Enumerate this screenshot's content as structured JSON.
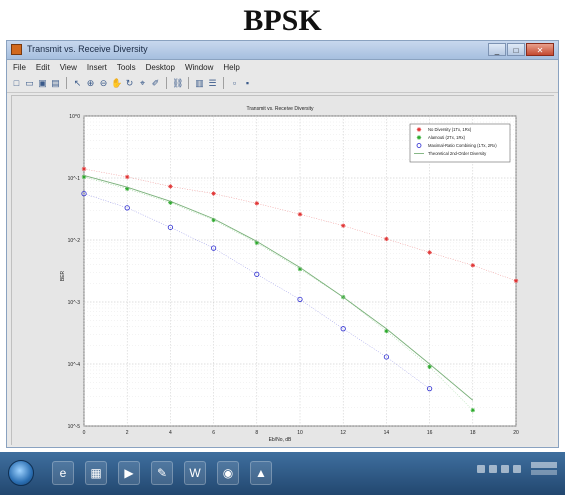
{
  "heading": "BPSK",
  "window": {
    "title": "Transmit vs. Receive Diversity",
    "controls": {
      "minimize": "_",
      "maximize": "□",
      "close": "✕"
    }
  },
  "menubar": [
    "File",
    "Edit",
    "View",
    "Insert",
    "Tools",
    "Desktop",
    "Window",
    "Help"
  ],
  "toolbar": {
    "icons": [
      "new-figure-icon",
      "open-file-icon",
      "save-icon",
      "print-icon",
      "select-arrow-icon",
      "zoom-in-icon",
      "zoom-out-icon",
      "pan-icon",
      "rotate-icon",
      "data-cursor-icon",
      "brush-icon",
      "link-icon",
      "colorbar-icon",
      "legend-icon",
      "hide-plot-tools-icon",
      "show-plot-tools-icon"
    ]
  },
  "chart_data": {
    "type": "line",
    "title": "Transmit vs. Receive Diversity",
    "xlabel": "Eb/No, dB",
    "ylabel": "BER",
    "x": [
      0,
      2,
      4,
      6,
      8,
      10,
      12,
      14,
      16,
      18,
      20
    ],
    "xlim": [
      0,
      20
    ],
    "ylim": [
      1e-05,
      1
    ],
    "yscale": "log",
    "xticks": [
      "0",
      "2",
      "4",
      "6",
      "8",
      "10",
      "12",
      "14",
      "16",
      "18",
      "20"
    ],
    "yticks": [
      "10^0",
      "10^-1",
      "10^-2",
      "10^-3",
      "10^-4",
      "10^-5"
    ],
    "grid": true,
    "legend_position": "top-right",
    "series": [
      {
        "name": "No Diversity (1Tx, 1Rx)",
        "color": "#e03030",
        "marker": "star",
        "line": "none",
        "values": [
          0.14,
          0.104,
          0.073,
          0.056,
          0.039,
          0.026,
          0.017,
          0.0104,
          0.0063,
          0.0039,
          0.0022
        ]
      },
      {
        "name": "Alamouti (2Tx, 1Rx)",
        "color": "#28a828",
        "marker": "star",
        "line": "none",
        "values": [
          0.104,
          0.067,
          0.04,
          0.021,
          0.009,
          0.0034,
          0.0012,
          0.00034,
          9e-05,
          1.8e-05,
          4e-06
        ]
      },
      {
        "name": "Maximal-Ratio Combining (1Tx, 2Rx)",
        "color": "#2a2ad0",
        "marker": "circle",
        "line": "none",
        "values": [
          0.056,
          0.033,
          0.016,
          0.0074,
          0.0028,
          0.0011,
          0.00037,
          0.00013,
          4e-05,
          9e-06,
          2e-06
        ]
      },
      {
        "name": "Theoretical 2nd-Order Diversity",
        "color": "#7ab07a",
        "marker": "none",
        "line": "solid",
        "values": [
          0.11,
          0.071,
          0.042,
          0.022,
          0.0095,
          0.0036,
          0.0012,
          0.00037,
          0.0001,
          2.6e-05,
          6.5e-06
        ]
      }
    ]
  },
  "taskbar": {
    "apps": [
      {
        "icon": "internet-explorer-icon",
        "glyph": "e"
      },
      {
        "icon": "file-explorer-icon",
        "glyph": "▦"
      },
      {
        "icon": "media-player-icon",
        "glyph": "▶"
      },
      {
        "icon": "paint-icon",
        "glyph": "✎"
      },
      {
        "icon": "word-icon",
        "glyph": "W"
      },
      {
        "icon": "chrome-icon",
        "glyph": "◉"
      },
      {
        "icon": "matlab-icon",
        "glyph": "▲"
      }
    ]
  }
}
